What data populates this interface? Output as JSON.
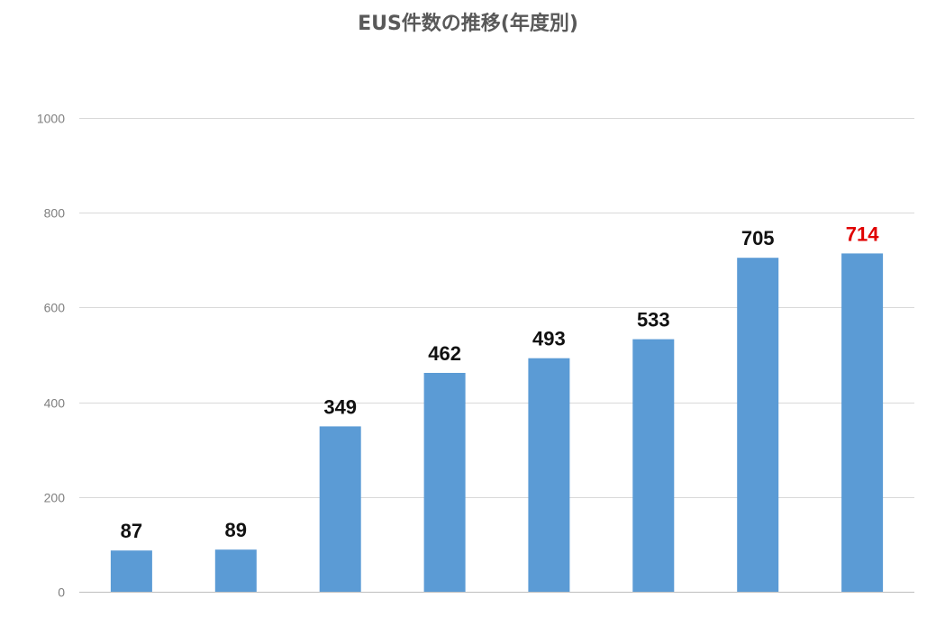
{
  "chart_data": {
    "type": "bar",
    "title": "EUS件数の推移(年度別)",
    "categories": [
      "",
      "",
      "",
      "",
      "",
      "",
      "",
      ""
    ],
    "values": [
      87,
      89,
      349,
      462,
      493,
      533,
      705,
      714
    ],
    "ylim": [
      0,
      1000
    ],
    "yticks": [
      0,
      200,
      400,
      600,
      800,
      1000
    ],
    "grid": true,
    "legend": "none",
    "bar_color": "#5b9bd5",
    "label_color": "#111111",
    "highlight_label_color": "#e00000",
    "highlight_index": 7
  }
}
